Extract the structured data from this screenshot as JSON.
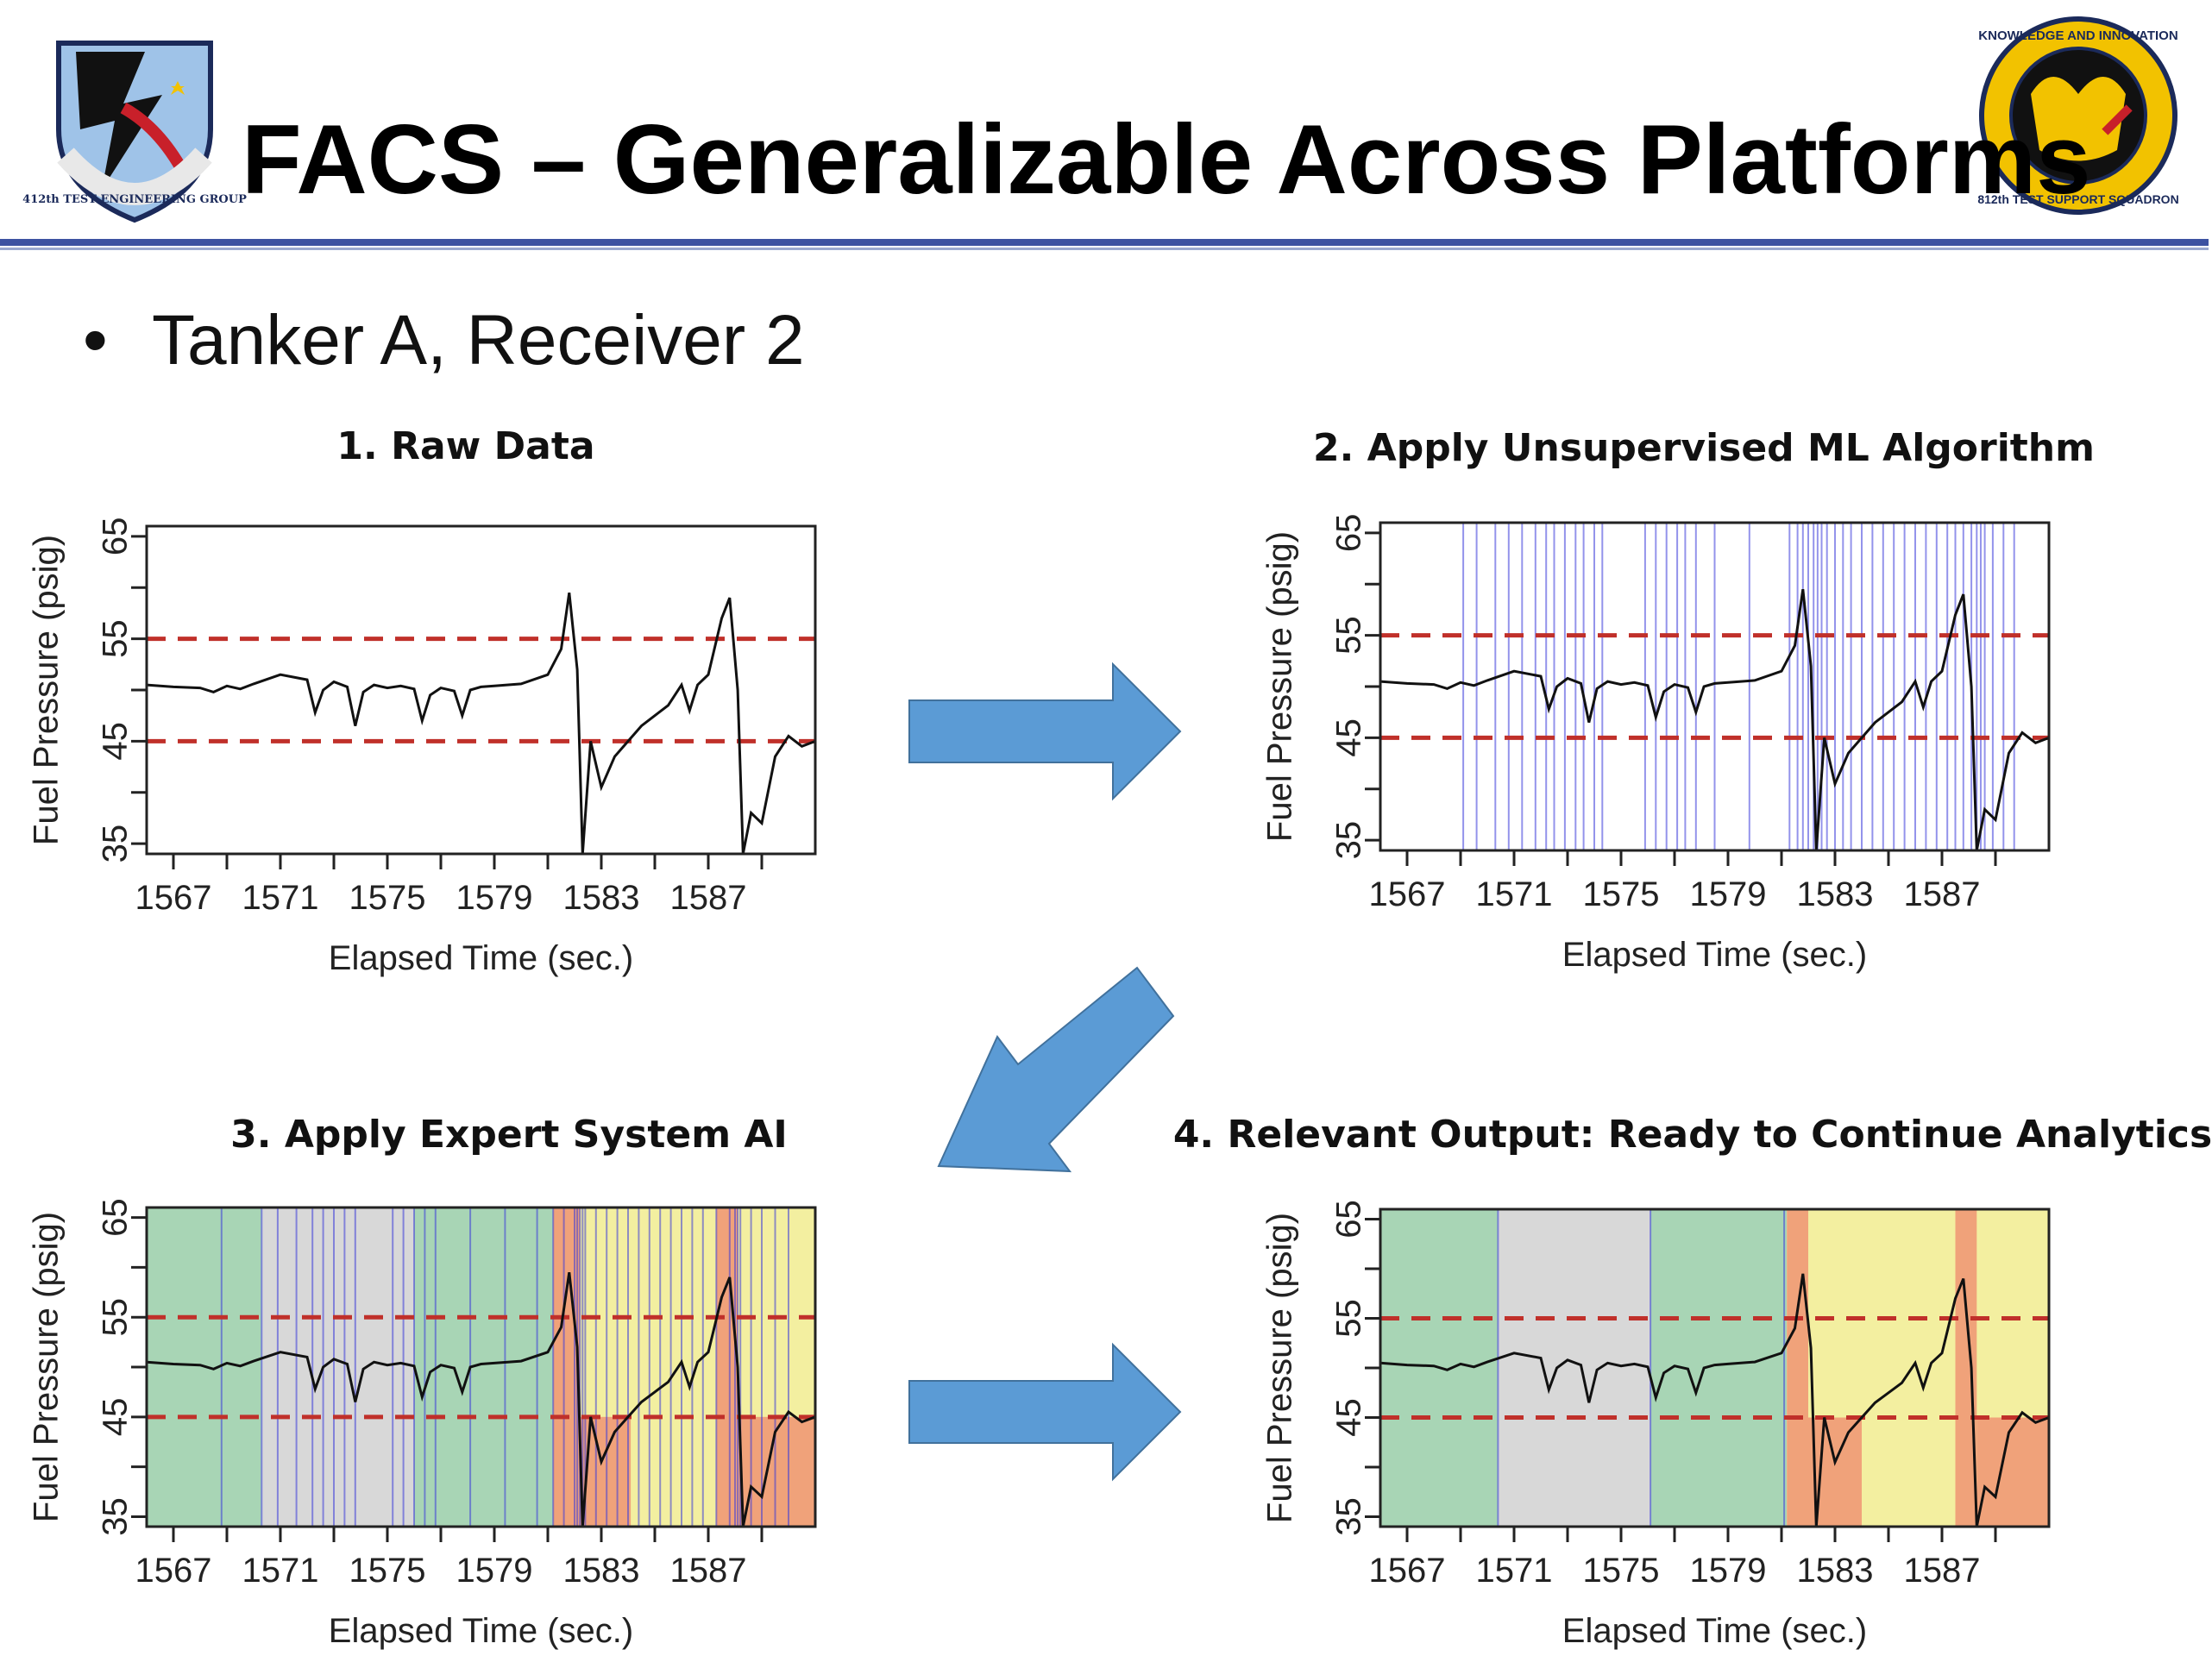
{
  "slide": {
    "title": "FACS – Generalizable Across Platforms",
    "bullet": "Tanker A, Receiver 2",
    "logo_left_icon": "shield-lightning-icon",
    "logo_left_text": "412th TEST ENGINEERING GROUP",
    "logo_right_icon": "squadron-emblem-icon",
    "logo_right_text_top": "KNOWLEDGE AND INNOVATION",
    "logo_right_text_bottom": "812th TEST SUPPORT SQUADRON",
    "arrow_color": "#5b9bd5"
  },
  "chart_data": [
    {
      "type": "line",
      "title": "1. Raw Data",
      "xlabel": "Elapsed Time (sec.)",
      "ylabel": "Fuel Pressure (psig)",
      "xlim": [
        1566,
        1591
      ],
      "ylim": [
        34,
        66
      ],
      "xticks": [
        1567,
        1571,
        1575,
        1579,
        1583,
        1587
      ],
      "yticks": [
        35,
        45,
        55,
        65
      ],
      "threshold_lines": [
        55,
        45
      ],
      "threshold_color": "#c0302a",
      "series": [
        {
          "x": [
            1566,
            1567,
            1568,
            1568.5,
            1569,
            1569.5,
            1570,
            1571,
            1572,
            1572.3,
            1572.6,
            1573,
            1573.5,
            1573.8,
            1574.1,
            1574.5,
            1575,
            1575.5,
            1576,
            1576.3,
            1576.6,
            1577,
            1577.5,
            1577.8,
            1578.1,
            1578.5,
            1579,
            1580,
            1581,
            1581.5,
            1581.8,
            1582.1,
            1582.3,
            1582.6,
            1583,
            1583.5,
            1584,
            1584.5,
            1585,
            1585.5,
            1586,
            1586.3,
            1586.6,
            1587,
            1587.5,
            1587.8,
            1588.1,
            1588.3,
            1588.6,
            1589,
            1589.5,
            1590,
            1590.5,
            1591
          ],
          "y": [
            50.5,
            50.3,
            50.2,
            49.8,
            50.4,
            50.1,
            50.6,
            51.5,
            51.0,
            47.8,
            50.0,
            50.8,
            50.3,
            46.5,
            49.8,
            50.5,
            50.2,
            50.4,
            50.1,
            47.0,
            49.5,
            50.2,
            49.9,
            47.5,
            50.0,
            50.3,
            50.4,
            50.6,
            51.5,
            54.0,
            59.5,
            52.0,
            34.0,
            45.0,
            40.5,
            43.5,
            45.0,
            46.5,
            47.5,
            48.5,
            50.5,
            48.0,
            50.5,
            51.5,
            57.0,
            59.0,
            50.0,
            34.0,
            38.0,
            37.0,
            43.5,
            45.5,
            44.5,
            45.0
          ],
          "color": "#111111"
        }
      ],
      "bands": [],
      "vlines": []
    },
    {
      "type": "line",
      "title": "2. Apply Unsupervised ML Algorithm",
      "xlabel": "Elapsed Time (sec.)",
      "ylabel": "Fuel Pressure (psig)",
      "xlim": [
        1566,
        1591
      ],
      "ylim": [
        34,
        66
      ],
      "xticks": [
        1567,
        1571,
        1575,
        1579,
        1583,
        1587
      ],
      "yticks": [
        35,
        45,
        55,
        65
      ],
      "threshold_lines": [
        55,
        45
      ],
      "threshold_color": "#c0302a",
      "series": [
        {
          "x": [
            1566,
            1567,
            1568,
            1568.5,
            1569,
            1569.5,
            1570,
            1571,
            1572,
            1572.3,
            1572.6,
            1573,
            1573.5,
            1573.8,
            1574.1,
            1574.5,
            1575,
            1575.5,
            1576,
            1576.3,
            1576.6,
            1577,
            1577.5,
            1577.8,
            1578.1,
            1578.5,
            1579,
            1580,
            1581,
            1581.5,
            1581.8,
            1582.1,
            1582.3,
            1582.6,
            1583,
            1583.5,
            1584,
            1584.5,
            1585,
            1585.5,
            1586,
            1586.3,
            1586.6,
            1587,
            1587.5,
            1587.8,
            1588.1,
            1588.3,
            1588.6,
            1589,
            1589.5,
            1590,
            1590.5,
            1591
          ],
          "y": [
            50.5,
            50.3,
            50.2,
            49.8,
            50.4,
            50.1,
            50.6,
            51.5,
            51.0,
            47.8,
            50.0,
            50.8,
            50.3,
            46.5,
            49.8,
            50.5,
            50.2,
            50.4,
            50.1,
            47.0,
            49.5,
            50.2,
            49.9,
            47.5,
            50.0,
            50.3,
            50.4,
            50.6,
            51.5,
            54.0,
            59.5,
            52.0,
            34.0,
            45.0,
            40.5,
            43.5,
            45.0,
            46.5,
            47.5,
            48.5,
            50.5,
            48.0,
            50.5,
            51.5,
            57.0,
            59.0,
            50.0,
            34.0,
            38.0,
            37.0,
            43.5,
            45.5,
            44.5,
            45.0
          ],
          "color": "#111111"
        }
      ],
      "bands": [],
      "vlines": [
        1569.1,
        1569.6,
        1570.3,
        1570.8,
        1571.3,
        1571.8,
        1572.2,
        1572.5,
        1572.9,
        1573.3,
        1573.6,
        1574.0,
        1574.3,
        1575.9,
        1576.3,
        1576.7,
        1577.1,
        1577.4,
        1577.8,
        1578.5,
        1579.8,
        1581.3,
        1581.6,
        1581.8,
        1582.0,
        1582.2,
        1582.35,
        1582.5,
        1582.7,
        1583.0,
        1583.3,
        1583.6,
        1584.0,
        1584.4,
        1584.8,
        1585.2,
        1585.6,
        1586.0,
        1586.4,
        1586.8,
        1587.2,
        1587.5,
        1587.8,
        1588.1,
        1588.3,
        1588.45,
        1588.6,
        1588.9,
        1589.3,
        1589.7
      ],
      "vline_color": "#3b3bdb"
    },
    {
      "type": "line",
      "title": "3. Apply Expert System AI",
      "xlabel": "Elapsed Time (sec.)",
      "ylabel": "Fuel Pressure (psig)",
      "xlim": [
        1566,
        1591
      ],
      "ylim": [
        34,
        66
      ],
      "xticks": [
        1567,
        1571,
        1575,
        1579,
        1583,
        1587
      ],
      "yticks": [
        35,
        45,
        55,
        65
      ],
      "threshold_lines": [
        55,
        45
      ],
      "threshold_color": "#c0302a",
      "series": [
        {
          "x": [
            1566,
            1567,
            1568,
            1568.5,
            1569,
            1569.5,
            1570,
            1571,
            1572,
            1572.3,
            1572.6,
            1573,
            1573.5,
            1573.8,
            1574.1,
            1574.5,
            1575,
            1575.5,
            1576,
            1576.3,
            1576.6,
            1577,
            1577.5,
            1577.8,
            1578.1,
            1578.5,
            1579,
            1580,
            1581,
            1581.5,
            1581.8,
            1582.1,
            1582.3,
            1582.6,
            1583,
            1583.5,
            1584,
            1584.5,
            1585,
            1585.5,
            1586,
            1586.3,
            1586.6,
            1587,
            1587.5,
            1587.8,
            1588.1,
            1588.3,
            1588.6,
            1589,
            1589.5,
            1590,
            1590.5,
            1591
          ],
          "y": [
            50.5,
            50.3,
            50.2,
            49.8,
            50.4,
            50.1,
            50.6,
            51.5,
            51.0,
            47.8,
            50.0,
            50.8,
            50.3,
            46.5,
            49.8,
            50.5,
            50.2,
            50.4,
            50.1,
            47.0,
            49.5,
            50.2,
            49.9,
            47.5,
            50.0,
            50.3,
            50.4,
            50.6,
            51.5,
            54.0,
            59.5,
            52.0,
            34.0,
            45.0,
            40.5,
            43.5,
            45.0,
            46.5,
            47.5,
            48.5,
            50.5,
            48.0,
            50.5,
            51.5,
            57.0,
            59.0,
            50.0,
            34.0,
            38.0,
            37.0,
            43.5,
            45.5,
            44.5,
            45.0
          ],
          "color": "#111111"
        }
      ],
      "bands": [
        {
          "x0": 1566,
          "x1": 1570.3,
          "color": "#a8d5b5",
          "y0": 34,
          "y1": 66
        },
        {
          "x0": 1570.3,
          "x1": 1576.0,
          "color": "#d8d8d8",
          "y0": 34,
          "y1": 66
        },
        {
          "x0": 1576.0,
          "x1": 1581.2,
          "color": "#a8d5b5",
          "y0": 34,
          "y1": 66
        },
        {
          "x0": 1581.2,
          "x1": 1591,
          "color": "#f3efa0",
          "y0": 34,
          "y1": 66
        },
        {
          "x0": 1581.2,
          "x1": 1582.2,
          "color": "#f0a27a",
          "y0": 34,
          "y1": 66
        },
        {
          "x0": 1582.2,
          "x1": 1584.1,
          "color": "#f0a27a",
          "y0": 34,
          "y1": 45
        },
        {
          "x0": 1587.3,
          "x1": 1588.1,
          "color": "#f0a27a",
          "y0": 34,
          "y1": 66
        },
        {
          "x0": 1588.1,
          "x1": 1591,
          "color": "#f0a27a",
          "y0": 34,
          "y1": 45
        }
      ],
      "vlines": [
        1568.8,
        1570.3,
        1570.9,
        1571.6,
        1572.2,
        1572.6,
        1573.0,
        1573.4,
        1573.8,
        1575.2,
        1575.6,
        1576.0,
        1576.4,
        1576.8,
        1578.1,
        1579.4,
        1580.6,
        1581.2,
        1581.6,
        1582.0,
        1582.1,
        1582.2,
        1582.3,
        1582.4,
        1582.8,
        1583.2,
        1583.6,
        1584.0,
        1584.4,
        1584.8,
        1585.2,
        1585.6,
        1586.0,
        1586.4,
        1586.8,
        1587.3,
        1587.8,
        1588.0,
        1588.1,
        1588.2,
        1588.6,
        1589.0,
        1589.5,
        1590.0
      ],
      "vline_color": "#3b3bdb"
    },
    {
      "type": "line",
      "title": "4. Relevant Output: Ready to Continue Analytics",
      "xlabel": "Elapsed Time (sec.)",
      "ylabel": "Fuel Pressure (psig)",
      "xlim": [
        1566,
        1591
      ],
      "ylim": [
        34,
        66
      ],
      "xticks": [
        1567,
        1571,
        1575,
        1579,
        1583,
        1587
      ],
      "yticks": [
        35,
        45,
        55,
        65
      ],
      "threshold_lines": [
        55,
        45
      ],
      "threshold_color": "#c0302a",
      "series": [
        {
          "x": [
            1566,
            1567,
            1568,
            1568.5,
            1569,
            1569.5,
            1570,
            1571,
            1572,
            1572.3,
            1572.6,
            1573,
            1573.5,
            1573.8,
            1574.1,
            1574.5,
            1575,
            1575.5,
            1576,
            1576.3,
            1576.6,
            1577,
            1577.5,
            1577.8,
            1578.1,
            1578.5,
            1579,
            1580,
            1581,
            1581.5,
            1581.8,
            1582.1,
            1582.3,
            1582.6,
            1583,
            1583.5,
            1584,
            1584.5,
            1585,
            1585.5,
            1586,
            1586.3,
            1586.6,
            1587,
            1587.5,
            1587.8,
            1588.1,
            1588.3,
            1588.6,
            1589,
            1589.5,
            1590,
            1590.5,
            1591
          ],
          "y": [
            50.5,
            50.3,
            50.2,
            49.8,
            50.4,
            50.1,
            50.6,
            51.5,
            51.0,
            47.8,
            50.0,
            50.8,
            50.3,
            46.5,
            49.8,
            50.5,
            50.2,
            50.4,
            50.1,
            47.0,
            49.5,
            50.2,
            49.9,
            47.5,
            50.0,
            50.3,
            50.4,
            50.6,
            51.5,
            54.0,
            59.5,
            52.0,
            34.0,
            45.0,
            40.5,
            43.5,
            45.0,
            46.5,
            47.5,
            48.5,
            50.5,
            48.0,
            50.5,
            51.5,
            57.0,
            59.0,
            50.0,
            34.0,
            38.0,
            37.0,
            43.5,
            45.5,
            44.5,
            45.0
          ],
          "color": "#111111"
        }
      ],
      "bands": [
        {
          "x0": 1566,
          "x1": 1570.4,
          "color": "#a8d5b5",
          "y0": 34,
          "y1": 66
        },
        {
          "x0": 1570.4,
          "x1": 1576.1,
          "color": "#d8d8d8",
          "y0": 34,
          "y1": 66
        },
        {
          "x0": 1576.1,
          "x1": 1581.2,
          "color": "#a8d5b5",
          "y0": 34,
          "y1": 66
        },
        {
          "x0": 1581.2,
          "x1": 1591,
          "color": "#f3efa0",
          "y0": 34,
          "y1": 66
        },
        {
          "x0": 1581.2,
          "x1": 1582.0,
          "color": "#f0a27a",
          "y0": 34,
          "y1": 66
        },
        {
          "x0": 1582.0,
          "x1": 1584.0,
          "color": "#f0a27a",
          "y0": 34,
          "y1": 45
        },
        {
          "x0": 1587.5,
          "x1": 1588.3,
          "color": "#f0a27a",
          "y0": 34,
          "y1": 66
        },
        {
          "x0": 1588.3,
          "x1": 1591,
          "color": "#f0a27a",
          "y0": 34,
          "y1": 45
        }
      ],
      "vlines": [
        1570.4,
        1576.1,
        1581.1
      ],
      "vline_color": "#3b3bdb"
    }
  ]
}
